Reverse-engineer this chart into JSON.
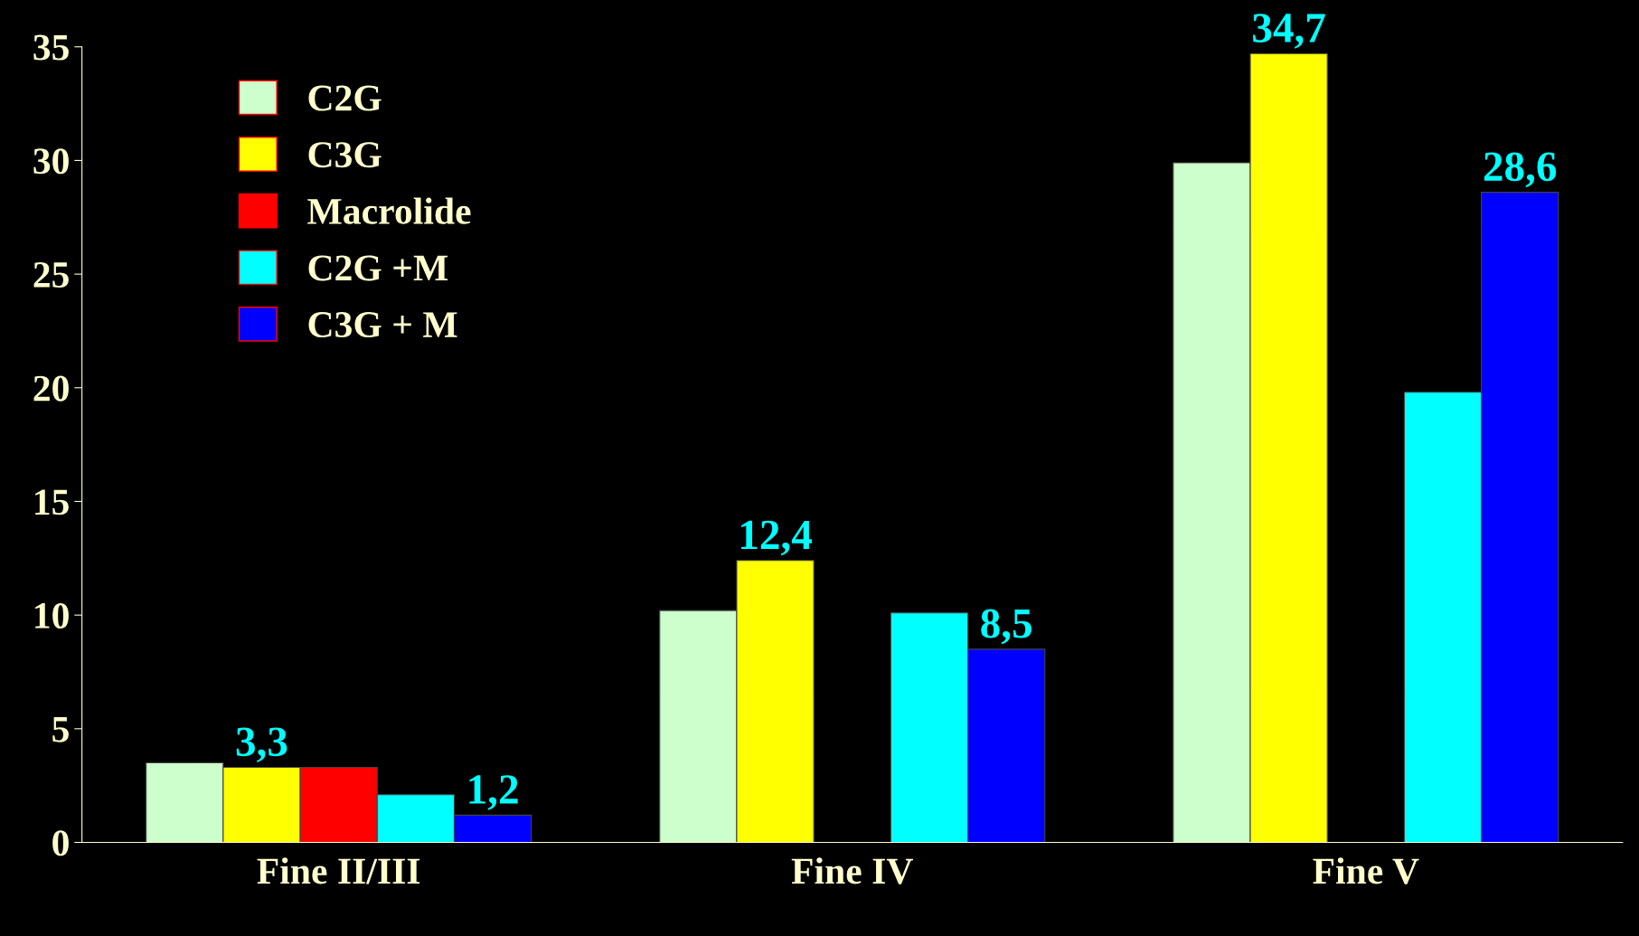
{
  "chart_data": {
    "type": "bar",
    "categories": [
      "Fine II/III",
      "Fine IV",
      "Fine V"
    ],
    "series": [
      {
        "name": "C2G",
        "color": "#ccffcc",
        "values": [
          3.5,
          10.2,
          29.9
        ],
        "value_labels": [
          null,
          null,
          null
        ]
      },
      {
        "name": "C3G",
        "color": "#ffff00",
        "values": [
          3.3,
          12.4,
          34.7
        ],
        "value_labels": [
          "3,3",
          "12,4",
          "34,7"
        ]
      },
      {
        "name": "Macrolide",
        "color": "#ff0000",
        "values": [
          3.3,
          null,
          null
        ],
        "value_labels": [
          null,
          null,
          null
        ]
      },
      {
        "name": "C2G +M",
        "color": "#00ffff",
        "values": [
          2.1,
          10.1,
          19.8
        ],
        "value_labels": [
          null,
          null,
          null
        ]
      },
      {
        "name": "C3G + M",
        "color": "#0000ff",
        "values": [
          1.2,
          8.5,
          28.6
        ],
        "value_labels": [
          "1,2",
          "8,5",
          "28,6"
        ]
      }
    ],
    "ylim": [
      0,
      35
    ],
    "yticks": [
      0,
      5,
      10,
      15,
      20,
      25,
      30,
      35
    ],
    "grid": false,
    "legend": "top left"
  }
}
